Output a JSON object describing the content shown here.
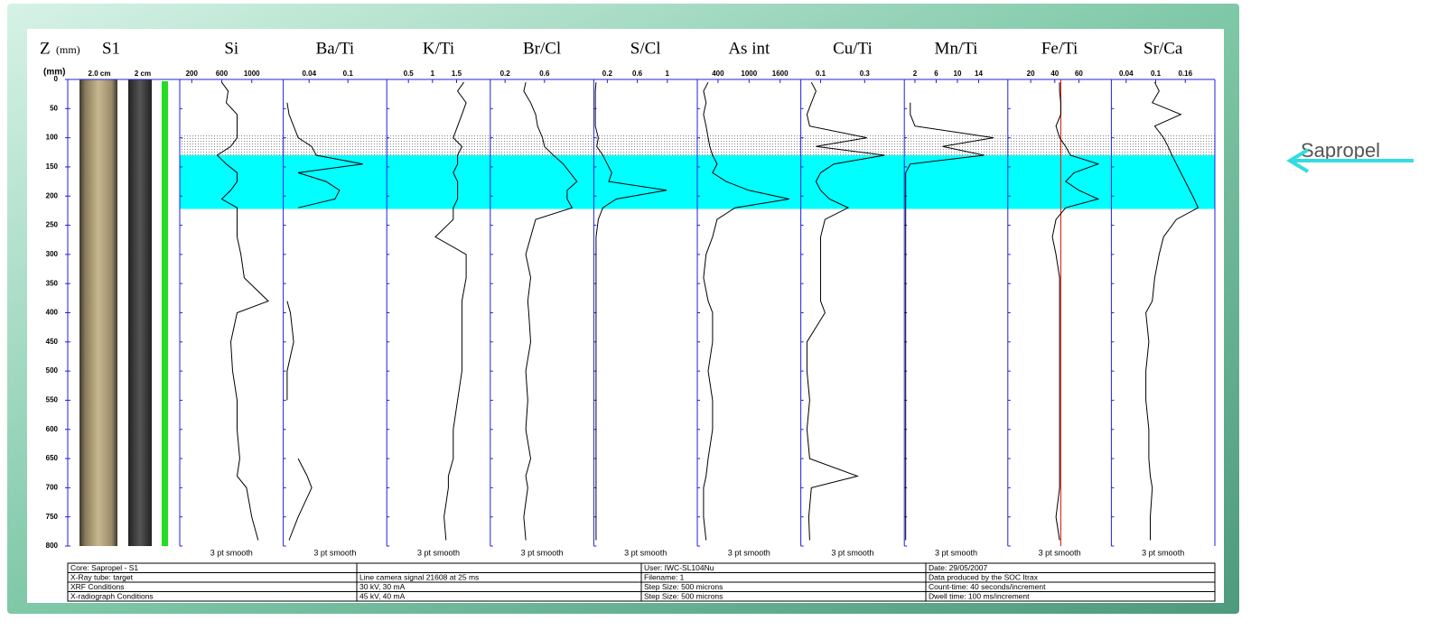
{
  "header": {
    "z_label": "Z",
    "z_unit": "(mm)",
    "core_label": "S1"
  },
  "depth": {
    "unit": "(mm)",
    "ylim": [
      0,
      800
    ],
    "yticks": [
      0,
      50,
      100,
      150,
      200,
      250,
      300,
      350,
      400,
      450,
      500,
      550,
      600,
      650,
      700,
      750,
      800
    ],
    "values": [
      5,
      20,
      40,
      60,
      80,
      100,
      115,
      130,
      145,
      160,
      175,
      190,
      205,
      220,
      240,
      270,
      300,
      340,
      380,
      400,
      450,
      500,
      550,
      600,
      650,
      680,
      700,
      750,
      790
    ]
  },
  "core_scales": [
    "2.0 cm",
    "2 cm"
  ],
  "bands": {
    "dotted": [
      95,
      130
    ],
    "sapropel": [
      130,
      222
    ]
  },
  "annotation": "Sapropel",
  "chart_data": [
    {
      "type": "line",
      "title": "Si",
      "xlim": [
        40,
        1420
      ],
      "xticks": [
        200,
        600,
        1000
      ],
      "note": "3 pt smooth",
      "values": [
        600,
        685,
        660,
        805,
        805,
        805,
        720,
        540,
        660,
        805,
        805,
        720,
        600,
        805,
        805,
        805,
        855,
        900,
        1220,
        805,
        720,
        745,
        805,
        805,
        840,
        805,
        930,
        1000,
        1085
      ]
    },
    {
      "type": "line",
      "title": "Ba/Ti",
      "xlim": [
        0,
        0.16
      ],
      "xticks": [
        0.04,
        0.1
      ],
      "note": "3 pt smooth",
      "values": [
        null,
        null,
        0.006,
        0.009,
        0.016,
        0.023,
        0.044,
        0.051,
        0.123,
        0.023,
        0.066,
        0.087,
        0.08,
        0.023,
        null,
        null,
        null,
        null,
        0.006,
        0.011,
        0.016,
        0.006,
        0.006,
        null,
        0.023,
        0.037,
        0.044,
        0.023,
        0.009
      ]
    },
    {
      "type": "line",
      "title": "K/Ti",
      "xlim": [
        0.05,
        2.2
      ],
      "xticks": [
        0.5,
        1.0,
        1.5
      ],
      "note": "3 pt smooth",
      "values": [
        1.65,
        1.52,
        1.7,
        1.61,
        1.52,
        1.43,
        1.61,
        1.52,
        1.52,
        1.43,
        1.52,
        1.52,
        1.52,
        1.43,
        1.43,
        1.06,
        1.7,
        1.7,
        1.61,
        1.61,
        1.61,
        1.61,
        1.52,
        1.43,
        1.43,
        1.33,
        1.33,
        1.24,
        1.28
      ]
    },
    {
      "type": "line",
      "title": "Br/Cl",
      "xlim": [
        0.05,
        1.1
      ],
      "xticks": [
        0.2,
        0.6
      ],
      "note": "3 pt smooth",
      "values": [
        0.41,
        0.39,
        0.46,
        0.51,
        0.53,
        0.58,
        0.6,
        0.69,
        0.79,
        0.86,
        0.93,
        0.83,
        0.83,
        0.88,
        0.51,
        0.46,
        0.41,
        0.46,
        0.43,
        0.44,
        0.46,
        0.41,
        0.43,
        0.41,
        0.46,
        0.41,
        0.43,
        0.39,
        0.41
      ]
    },
    {
      "type": "line",
      "title": "S/Cl",
      "xlim": [
        0.02,
        1.4
      ],
      "xticks": [
        0.2,
        0.6,
        1.0
      ],
      "note": "3 pt smooth",
      "values": [
        0.05,
        0.04,
        0.04,
        0.04,
        0.04,
        0.08,
        0.06,
        0.14,
        0.2,
        0.26,
        0.22,
        0.99,
        0.32,
        0.14,
        0.08,
        0.05,
        0.05,
        0.05,
        0.05,
        0.05,
        0.05,
        0.05,
        0.05,
        0.05,
        0.05,
        0.05,
        0.05,
        0.05,
        0.05
      ]
    },
    {
      "type": "line",
      "title": "As int",
      "xlim": [
        0,
        2000
      ],
      "xticks": [
        400,
        1000,
        1600
      ],
      "note": "3 pt smooth",
      "values": [
        210,
        120,
        170,
        120,
        170,
        210,
        240,
        295,
        383,
        295,
        557,
        990,
        1775,
        730,
        383,
        295,
        170,
        120,
        210,
        295,
        295,
        210,
        295,
        295,
        210,
        170,
        120,
        120,
        170
      ]
    },
    {
      "type": "line",
      "title": "Cu/Ti",
      "xlim": [
        0.01,
        0.48
      ],
      "xticks": [
        0.1,
        0.3
      ],
      "note": "3 pt smooth",
      "values": [
        0.058,
        0.079,
        0.058,
        0.038,
        0.05,
        0.31,
        0.079,
        0.39,
        0.16,
        0.1,
        0.079,
        0.1,
        0.14,
        0.225,
        0.12,
        0.1,
        0.1,
        0.1,
        0.1,
        0.12,
        0.038,
        0.038,
        0.05,
        0.038,
        0.05,
        0.267,
        0.058,
        0.046,
        0.05
      ]
    },
    {
      "type": "line",
      "title": "Mn/Ti",
      "xlim": [
        0,
        19.5
      ],
      "xticks": [
        2,
        6,
        10,
        14
      ],
      "note": "3 pt smooth",
      "values": [
        null,
        null,
        1.13,
        1.13,
        2,
        16.8,
        7.2,
        15,
        1.13,
        0.26,
        0.26,
        0.26,
        0.26,
        0.26,
        0.26,
        0.26,
        0.26,
        0.26,
        0.26,
        0.26,
        0.26,
        0.26,
        0.26,
        0.26,
        0.26,
        0.26,
        0.26,
        0.26,
        0.26
      ]
    },
    {
      "type": "line",
      "title": "Fe/Ti",
      "xlim": [
        1,
        87
      ],
      "xticks": [
        20,
        40,
        60
      ],
      "note": "3 pt smooth",
      "ref_line": 45,
      "values": [
        44,
        44,
        45,
        45,
        41,
        44,
        49,
        53,
        76,
        56,
        49,
        60,
        76,
        49,
        41,
        38,
        41,
        44,
        44,
        44,
        44,
        44,
        44,
        44,
        44,
        44,
        44,
        41,
        44
      ]
    },
    {
      "type": "line",
      "title": "Sr/Ca",
      "xlim": [
        0.01,
        0.22
      ],
      "xticks": [
        0.04,
        0.1,
        0.16
      ],
      "note": "3 pt smooth",
      "values": [
        0.098,
        0.107,
        0.093,
        0.151,
        0.098,
        0.116,
        0.125,
        0.133,
        0.142,
        0.151,
        0.16,
        0.169,
        0.178,
        0.186,
        0.142,
        0.116,
        0.107,
        0.098,
        0.093,
        0.08,
        0.086,
        0.08,
        0.08,
        0.086,
        0.086,
        0.089,
        0.093,
        0.089,
        0.089
      ]
    }
  ],
  "info_table": {
    "rows": [
      [
        "Core: Sapropel - S1",
        null,
        "User: IWC-SL104Nu",
        "Date: 29/05/2007"
      ],
      [
        "X-Ray tube:  target",
        "Line camera signal 21608 at 25 ms",
        "Filename: 1",
        "Data produced by the SOC Itrax"
      ],
      [
        "XRF Conditions",
        "30 kV, 30 mA",
        "Step Size: 500 microns",
        "Count-time: 40 seconds/increment"
      ],
      [
        "X-radiograph Conditions",
        "45 kV, 40 mA",
        "Step Size: 500 microns",
        "Dwell time: 100 ms/increment"
      ]
    ]
  }
}
